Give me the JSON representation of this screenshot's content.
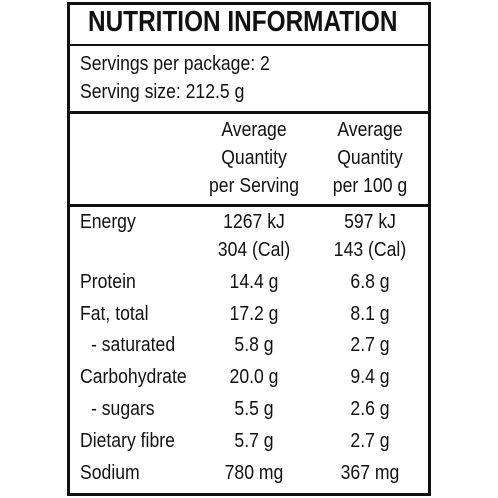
{
  "title": "NUTRITION INFORMATION",
  "servings": [
    "Servings per package: 2",
    "Serving size: 212.5 g"
  ],
  "table": {
    "header": [
      [
        "Average",
        "Quantity",
        "per Serving"
      ],
      [
        "Average",
        "Quantity",
        "per 100 g"
      ]
    ],
    "rows": [
      {
        "label": "Energy",
        "per_serving": [
          "1267 kJ",
          "304 (Cal)"
        ],
        "per_100g": [
          "597 kJ",
          "143 (Cal)"
        ]
      },
      {
        "label": "Protein",
        "per_serving": [
          "14.4 g"
        ],
        "per_100g": [
          "6.8 g"
        ]
      },
      {
        "label": "Fat, total",
        "per_serving": [
          "17.2 g"
        ],
        "per_100g": [
          "8.1 g"
        ]
      },
      {
        "label": "- saturated",
        "per_serving": [
          "5.8 g"
        ],
        "per_100g": [
          "2.7 g"
        ],
        "sub": true
      },
      {
        "label": "Carbohydrate",
        "per_serving": [
          "20.0 g"
        ],
        "per_100g": [
          "9.4 g"
        ]
      },
      {
        "label": "- sugars",
        "per_serving": [
          "5.5 g"
        ],
        "per_100g": [
          "2.6 g"
        ],
        "sub": true
      },
      {
        "label": "Dietary fibre",
        "per_serving": [
          "5.7 g"
        ],
        "per_100g": [
          "2.7 g"
        ]
      },
      {
        "label": "Sodium",
        "per_serving": [
          "780 mg"
        ],
        "per_100g": [
          "367 mg"
        ]
      }
    ]
  }
}
